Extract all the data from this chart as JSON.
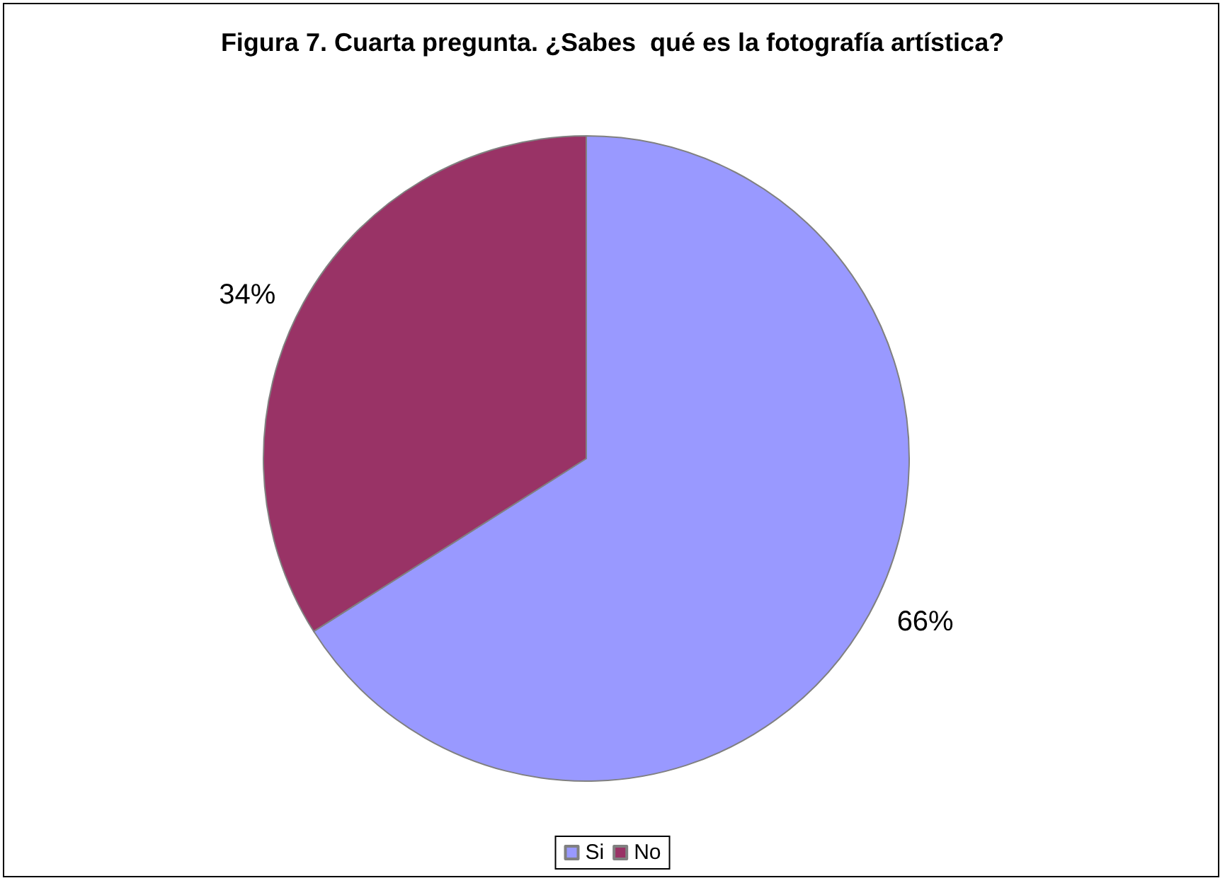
{
  "chart_data": {
    "type": "pie",
    "title": "Figura 7. Cuarta pregunta. ¿Sabes  qué es la fotografía artística?",
    "categories": [
      "Si",
      "No"
    ],
    "values": [
      66,
      34
    ],
    "colors": [
      "#9999ff",
      "#993366"
    ],
    "value_labels": [
      "66%",
      "34%"
    ],
    "legend": "bottom"
  }
}
